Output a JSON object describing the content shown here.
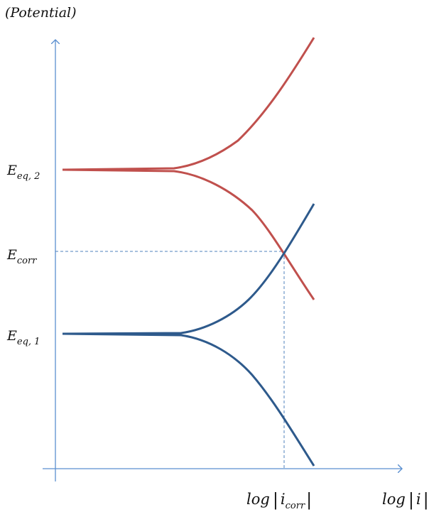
{
  "title": "(Potential)",
  "labels": {
    "eq2": {
      "main": "E",
      "sub": "eq, 2"
    },
    "corr": {
      "main": "E",
      "sub": "corr"
    },
    "eq1": {
      "main": "E",
      "sub": "eq, 1"
    },
    "x_corr": {
      "prefix": "log",
      "var": "i",
      "sub": "corr"
    },
    "x_axis": {
      "prefix": "log",
      "var": "i"
    }
  },
  "colors": {
    "axis": "#5B8FD0",
    "red_curve": "#C0504D",
    "blue_curve": "#2E5A8C",
    "guide": "#4F81BD"
  }
}
